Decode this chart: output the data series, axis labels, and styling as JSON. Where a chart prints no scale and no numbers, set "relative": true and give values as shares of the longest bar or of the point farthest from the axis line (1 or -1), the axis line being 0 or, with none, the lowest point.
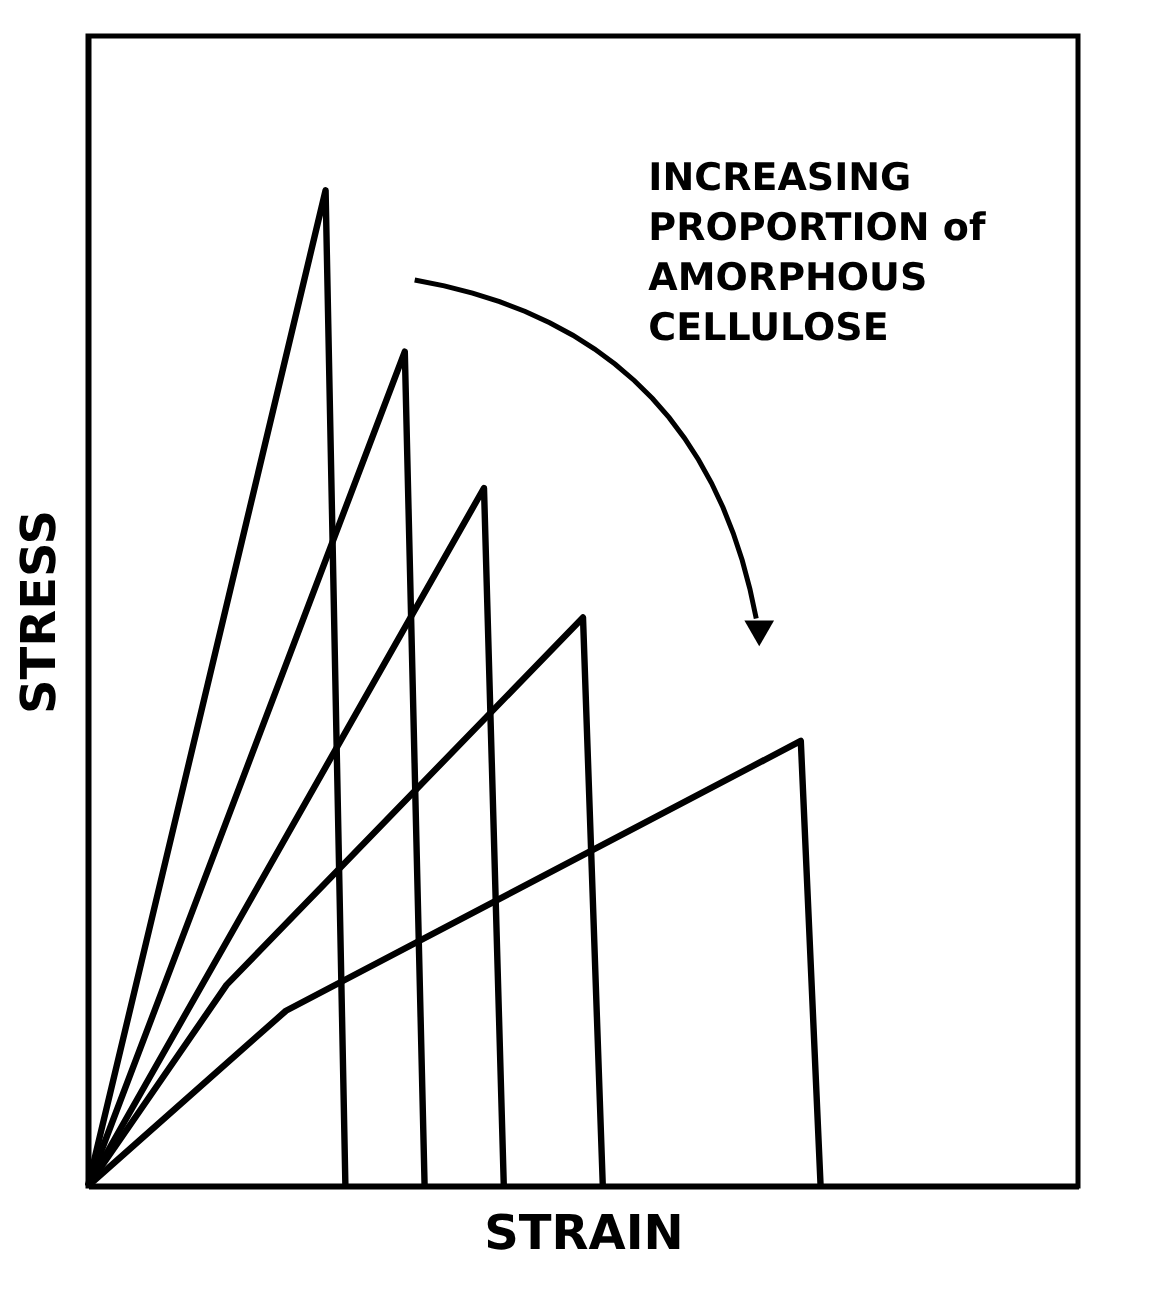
{
  "chart_data": {
    "type": "line",
    "relative": true,
    "xlabel": "STRAIN",
    "ylabel": "STRESS",
    "tick_labels": false,
    "grid": false,
    "marker": "none",
    "line_style": "solid",
    "categories": [
      null,
      null,
      null,
      null,
      null,
      null,
      null,
      null,
      null,
      null,
      null,
      null,
      null,
      null,
      null,
      null,
      null,
      null,
      null,
      null,
      null,
      null,
      null,
      null,
      null,
      null,
      null,
      null,
      null,
      null,
      null,
      null,
      null,
      null,
      null,
      null,
      null,
      null,
      null,
      null,
      null,
      null,
      null,
      null,
      null,
      null,
      null,
      null,
      null,
      null,
      null
    ],
    "series": [
      {
        "color": "#000000",
        "values": [
          0,
          null,
          null,
          null,
          null,
          null,
          null,
          null,
          null,
          null,
          null,
          null,
          1,
          0,
          null,
          null,
          null,
          null,
          null,
          null,
          null,
          null,
          null,
          null,
          null,
          null,
          null,
          null,
          null,
          null,
          null,
          null,
          null,
          null,
          null,
          null,
          null,
          null,
          null,
          null,
          null,
          null,
          null,
          null,
          null,
          null,
          null,
          null,
          null,
          null,
          null
        ]
      },
      {
        "color": "#000000",
        "values": [
          0,
          null,
          null,
          null,
          null,
          null,
          null,
          null,
          null,
          null,
          null,
          null,
          null,
          null,
          null,
          null,
          0.838,
          0,
          null,
          null,
          null,
          null,
          null,
          null,
          null,
          null,
          null,
          null,
          null,
          null,
          null,
          null,
          null,
          null,
          null,
          null,
          null,
          null,
          null,
          null,
          null,
          null,
          null,
          null,
          null,
          null,
          null,
          null,
          null,
          null,
          null
        ]
      },
      {
        "color": "#000000",
        "values": [
          0,
          null,
          null,
          null,
          null,
          null,
          null,
          null,
          null,
          null,
          null,
          null,
          null,
          null,
          null,
          null,
          null,
          null,
          null,
          null,
          0.701,
          0,
          null,
          null,
          null,
          null,
          null,
          null,
          null,
          null,
          null,
          null,
          null,
          null,
          null,
          null,
          null,
          null,
          null,
          null,
          null,
          null,
          null,
          null,
          null,
          null,
          null,
          null,
          null,
          null,
          null
        ]
      },
      {
        "color": "#000000",
        "values": [
          0,
          null,
          null,
          null,
          null,
          null,
          null,
          0.202,
          null,
          null,
          null,
          null,
          null,
          null,
          null,
          null,
          null,
          null,
          null,
          null,
          null,
          null,
          null,
          null,
          null,
          0.571,
          0,
          null,
          null,
          null,
          null,
          null,
          null,
          null,
          null,
          null,
          null,
          null,
          null,
          null,
          null,
          null,
          null,
          null,
          null,
          null,
          null,
          null,
          null,
          null,
          null
        ]
      },
      {
        "color": "#000000",
        "values": [
          0,
          null,
          null,
          null,
          null,
          null,
          null,
          null,
          null,
          null,
          0.176,
          null,
          null,
          null,
          null,
          null,
          null,
          null,
          null,
          null,
          null,
          null,
          null,
          null,
          null,
          null,
          null,
          null,
          null,
          null,
          null,
          null,
          null,
          null,
          null,
          null,
          0.447,
          0,
          null,
          null,
          null,
          null,
          null,
          null,
          null,
          null,
          null,
          null,
          null,
          null,
          null
        ]
      }
    ],
    "annotations": [
      "INCREASING\nPROPORTION of\nAMORPHOUS\nCELLULOSE"
    ]
  }
}
